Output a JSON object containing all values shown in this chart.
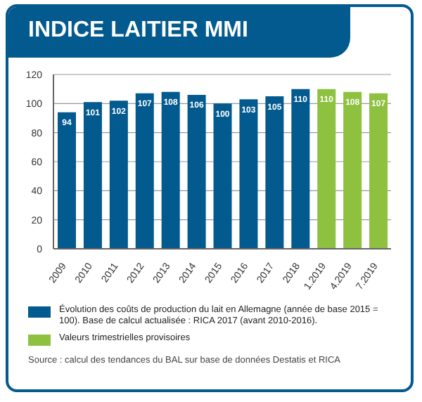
{
  "chart_data": {
    "type": "bar",
    "title": "INDICE LAITIER MMI",
    "categories": [
      "2009",
      "2010",
      "2011",
      "2012",
      "2013",
      "2014",
      "2015",
      "2016",
      "2017",
      "2018",
      "1.2019",
      "4.2019",
      "7.2019"
    ],
    "series": [
      {
        "name": "Évolution des coûts de production du lait en Allemagne (année de base 2015 = 100). Base de calcul actualisée : RICA 2017 (avant 2010-2016).",
        "color": "#035a8f",
        "values": [
          94,
          101,
          102,
          107,
          108,
          106,
          100,
          103,
          105,
          110,
          null,
          null,
          null
        ]
      },
      {
        "name": "Valeurs trimestrielles provisoires",
        "color": "#8dc13f",
        "values": [
          null,
          null,
          null,
          null,
          null,
          null,
          null,
          null,
          null,
          null,
          110,
          108,
          107
        ]
      }
    ],
    "stacked": true,
    "ylim": [
      0,
      120
    ],
    "yticks": [
      0,
      20,
      40,
      60,
      80,
      100,
      120
    ],
    "grid": "y",
    "data_labels": true,
    "legend": "bottom",
    "annotations": [
      "Source : calcul des tendances du BAL sur base de données Destatis et RICA"
    ]
  }
}
